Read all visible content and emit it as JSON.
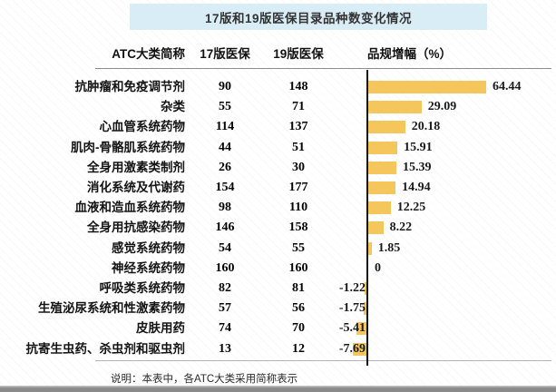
{
  "title": "17版和19版医保目录品种数变化情况",
  "note": "说明：本表中，各ATC大类采用简称表示",
  "colors": {
    "bar": "#f4c65b",
    "title_bg": "#d9edf6",
    "axis": "#141414"
  },
  "table": {
    "headers": [
      "ATC大类简称",
      "17版医保",
      "19版医保",
      "品规增幅（%）"
    ],
    "rows": [
      {
        "name": "抗肿瘤和免疫调节剂",
        "v17": "90",
        "v19": "148",
        "growth": 64.44,
        "growth_label": "64.44"
      },
      {
        "name": "杂类",
        "v17": "55",
        "v19": "71",
        "growth": 29.09,
        "growth_label": "29.09"
      },
      {
        "name": "心血管系统药物",
        "v17": "114",
        "v19": "137",
        "growth": 20.18,
        "growth_label": "20.18"
      },
      {
        "name": "肌肉-骨骼肌系统药物",
        "v17": "44",
        "v19": "51",
        "growth": 15.91,
        "growth_label": "15.91"
      },
      {
        "name": "全身用激素类制剂",
        "v17": "26",
        "v19": "30",
        "growth": 15.39,
        "growth_label": "15.39"
      },
      {
        "name": "消化系统及代谢药",
        "v17": "154",
        "v19": "177",
        "growth": 14.94,
        "growth_label": "14.94"
      },
      {
        "name": "血液和造血系统药物",
        "v17": "98",
        "v19": "110",
        "growth": 12.25,
        "growth_label": "12.25"
      },
      {
        "name": "全身用抗感染药物",
        "v17": "146",
        "v19": "158",
        "growth": 8.22,
        "growth_label": "8.22"
      },
      {
        "name": "感觉系统药物",
        "v17": "54",
        "v19": "55",
        "growth": 1.85,
        "growth_label": "1.85"
      },
      {
        "name": "神经系统药物",
        "v17": "160",
        "v19": "160",
        "growth": 0,
        "growth_label": "0"
      },
      {
        "name": "呼吸类系统药物",
        "v17": "82",
        "v19": "81",
        "growth": -1.22,
        "growth_label": "-1.22"
      },
      {
        "name": "生殖泌尿系统和性激素药物",
        "v17": "57",
        "v19": "56",
        "growth": -1.75,
        "growth_label": "-1.75"
      },
      {
        "name": "皮肤用药",
        "v17": "74",
        "v19": "70",
        "growth": -5.41,
        "growth_label": "-5.41"
      },
      {
        "name": "抗寄生虫药、杀虫剂和驱虫剂",
        "v17": "13",
        "v19": "12",
        "growth": -7.69,
        "growth_label": "-7.69"
      }
    ]
  },
  "chart_data": {
    "type": "bar",
    "orientation": "horizontal",
    "title": "17版和19版医保目录品种数变化情况",
    "categories": [
      "抗肿瘤和免疫调节剂",
      "杂类",
      "心血管系统药物",
      "肌肉-骨骼肌系统药物",
      "全身用激素类制剂",
      "消化系统及代谢药",
      "血液和造血系统药物",
      "全身用抗感染药物",
      "感觉系统药物",
      "神经系统药物",
      "呼吸类系统药物",
      "生殖泌尿系统和性激素药物",
      "皮肤用药",
      "抗寄生虫药、杀虫剂和驱虫剂"
    ],
    "series": [
      {
        "name": "17版医保",
        "values": [
          90,
          55,
          114,
          44,
          26,
          154,
          98,
          146,
          54,
          160,
          82,
          57,
          74,
          13
        ]
      },
      {
        "name": "19版医保",
        "values": [
          148,
          71,
          137,
          51,
          30,
          177,
          110,
          158,
          55,
          160,
          81,
          56,
          70,
          12
        ]
      },
      {
        "name": "品规增幅（%）",
        "values": [
          64.44,
          29.09,
          20.18,
          15.91,
          15.39,
          14.94,
          12.25,
          8.22,
          1.85,
          0,
          -1.22,
          -1.75,
          -5.41,
          -7.69
        ]
      }
    ],
    "plotted_series": "品规增幅（%）",
    "value_axis_range": [
      -7.69,
      64.44
    ],
    "grid": false,
    "legend": false,
    "data_labels": true,
    "note": "说明：本表中，各ATC大类采用简称表示"
  }
}
